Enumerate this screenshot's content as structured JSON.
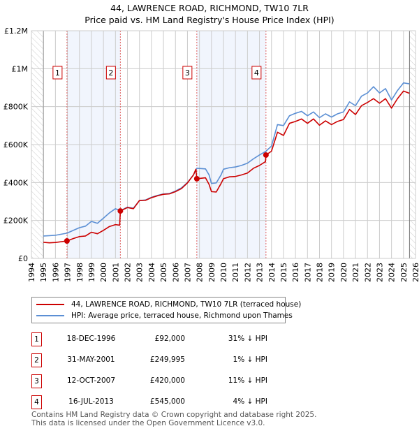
{
  "chart_data": {
    "type": "line",
    "title": "44, LAWRENCE ROAD, RICHMOND, TW10 7LR",
    "subtitle": "Price paid vs. HM Land Registry's House Price Index (HPI)",
    "xlim": [
      1994,
      2026
    ],
    "ylim": [
      0,
      1200000
    ],
    "x_ticks": [
      "1994",
      "1995",
      "1996",
      "1997",
      "1998",
      "1999",
      "2000",
      "2001",
      "2002",
      "2003",
      "2004",
      "2005",
      "2006",
      "2007",
      "2008",
      "2009",
      "2010",
      "2011",
      "2012",
      "2013",
      "2014",
      "2015",
      "2016",
      "2017",
      "2018",
      "2019",
      "2020",
      "2021",
      "2022",
      "2023",
      "2024",
      "2025",
      "2026"
    ],
    "y_ticks": [
      {
        "v": 0,
        "label": "£0"
      },
      {
        "v": 200000,
        "label": "£200K"
      },
      {
        "v": 400000,
        "label": "£400K"
      },
      {
        "v": 600000,
        "label": "£600K"
      },
      {
        "v": 800000,
        "label": "£800K"
      },
      {
        "v": 1000000,
        "label": "£1M"
      },
      {
        "v": 1200000,
        "label": "£1.2M"
      }
    ],
    "grid": true,
    "data_range": [
      1995,
      2025.5
    ],
    "series": [
      {
        "name": "44, LAWRENCE ROAD, RICHMOND, TW10 7LR (terraced house)",
        "color": "#cc0000",
        "points": [
          [
            1995,
            85
          ],
          [
            1995.5,
            82
          ],
          [
            1996,
            84
          ],
          [
            1996.96,
            92
          ],
          [
            1997.5,
            105
          ],
          [
            1998,
            115
          ],
          [
            1998.5,
            118
          ],
          [
            1999,
            138
          ],
          [
            1999.5,
            130
          ],
          [
            2000,
            148
          ],
          [
            2000.5,
            168
          ],
          [
            2001,
            178
          ],
          [
            2001.35,
            175
          ],
          [
            2001.41,
            250
          ],
          [
            2002,
            268
          ],
          [
            2002.5,
            262
          ],
          [
            2003,
            305
          ],
          [
            2003.5,
            306
          ],
          [
            2004,
            320
          ],
          [
            2004.5,
            330
          ],
          [
            2005,
            338
          ],
          [
            2005.5,
            340
          ],
          [
            2006,
            352
          ],
          [
            2006.5,
            368
          ],
          [
            2007,
            398
          ],
          [
            2007.5,
            440
          ],
          [
            2007.7,
            470
          ],
          [
            2007.78,
            420
          ],
          [
            2008.5,
            425
          ],
          [
            2008.8,
            390
          ],
          [
            2009,
            352
          ],
          [
            2009.4,
            350
          ],
          [
            2009.8,
            395
          ],
          [
            2010,
            420
          ],
          [
            2010.5,
            430
          ],
          [
            2011,
            432
          ],
          [
            2011.5,
            440
          ],
          [
            2012,
            450
          ],
          [
            2012.5,
            475
          ],
          [
            2013,
            490
          ],
          [
            2013.5,
            510
          ],
          [
            2013.54,
            545
          ],
          [
            2014,
            565
          ],
          [
            2014.5,
            665
          ],
          [
            2015,
            648
          ],
          [
            2015.5,
            712
          ],
          [
            2016,
            722
          ],
          [
            2016.5,
            735
          ],
          [
            2017,
            712
          ],
          [
            2017.5,
            735
          ],
          [
            2018,
            702
          ],
          [
            2018.5,
            725
          ],
          [
            2019,
            705
          ],
          [
            2019.5,
            722
          ],
          [
            2020,
            732
          ],
          [
            2020.5,
            785
          ],
          [
            2021,
            758
          ],
          [
            2021.5,
            805
          ],
          [
            2022,
            822
          ],
          [
            2022.5,
            842
          ],
          [
            2023,
            818
          ],
          [
            2023.5,
            842
          ],
          [
            2024,
            792
          ],
          [
            2024.5,
            842
          ],
          [
            2025,
            882
          ],
          [
            2025.5,
            870
          ]
        ]
      },
      {
        "name": "HPI: Average price, terraced house, Richmond upon Thames",
        "color": "#5b8fd4",
        "points": [
          [
            1995,
            118
          ],
          [
            1995.5,
            120
          ],
          [
            1996,
            122
          ],
          [
            1996.96,
            133
          ],
          [
            1997.5,
            148
          ],
          [
            1998,
            162
          ],
          [
            1998.5,
            170
          ],
          [
            1999,
            195
          ],
          [
            1999.5,
            185
          ],
          [
            2000,
            212
          ],
          [
            2000.5,
            240
          ],
          [
            2001,
            262
          ],
          [
            2001.41,
            252
          ],
          [
            2002,
            270
          ],
          [
            2002.5,
            265
          ],
          [
            2003,
            305
          ],
          [
            2003.5,
            308
          ],
          [
            2004,
            322
          ],
          [
            2004.5,
            332
          ],
          [
            2005,
            340
          ],
          [
            2005.5,
            342
          ],
          [
            2006,
            355
          ],
          [
            2006.5,
            372
          ],
          [
            2007,
            400
          ],
          [
            2007.5,
            440
          ],
          [
            2007.78,
            475
          ],
          [
            2008.5,
            472
          ],
          [
            2008.8,
            440
          ],
          [
            2009,
            395
          ],
          [
            2009.4,
            398
          ],
          [
            2009.8,
            440
          ],
          [
            2010,
            470
          ],
          [
            2010.5,
            478
          ],
          [
            2011,
            482
          ],
          [
            2011.5,
            490
          ],
          [
            2012,
            502
          ],
          [
            2012.5,
            525
          ],
          [
            2013,
            545
          ],
          [
            2013.54,
            565
          ],
          [
            2014,
            592
          ],
          [
            2014.5,
            705
          ],
          [
            2015,
            700
          ],
          [
            2015.5,
            752
          ],
          [
            2016,
            765
          ],
          [
            2016.5,
            775
          ],
          [
            2017,
            752
          ],
          [
            2017.5,
            772
          ],
          [
            2018,
            742
          ],
          [
            2018.5,
            762
          ],
          [
            2019,
            745
          ],
          [
            2019.5,
            762
          ],
          [
            2020,
            772
          ],
          [
            2020.5,
            825
          ],
          [
            2021,
            805
          ],
          [
            2021.5,
            855
          ],
          [
            2022,
            872
          ],
          [
            2022.5,
            905
          ],
          [
            2023,
            872
          ],
          [
            2023.5,
            895
          ],
          [
            2024,
            835
          ],
          [
            2024.5,
            885
          ],
          [
            2025,
            925
          ],
          [
            2025.5,
            920
          ]
        ]
      }
    ],
    "sales": [
      {
        "n": "1",
        "date": "18-DEC-1996",
        "x": 1996.96,
        "price_value": 92,
        "price": "£92,000",
        "hpi": "31% ↓ HPI"
      },
      {
        "n": "2",
        "date": "31-MAY-2001",
        "x": 2001.41,
        "price_value": 250,
        "price": "£249,995",
        "hpi": "1% ↓ HPI"
      },
      {
        "n": "3",
        "date": "12-OCT-2007",
        "x": 2007.78,
        "price_value": 420,
        "price": "£420,000",
        "hpi": "11% ↓ HPI"
      },
      {
        "n": "4",
        "date": "16-JUL-2013",
        "x": 2013.54,
        "price_value": 545,
        "price": "£545,000",
        "hpi": "4% ↓ HPI"
      }
    ]
  },
  "footer": {
    "line1": "Contains HM Land Registry data © Crown copyright and database right 2025.",
    "line2": "This data is licensed under the Open Government Licence v3.0."
  }
}
